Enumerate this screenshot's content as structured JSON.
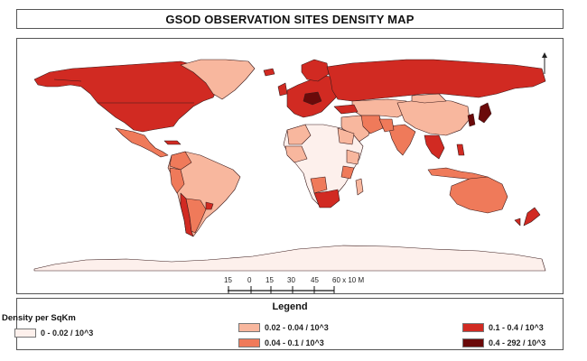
{
  "title": "GSOD OBSERVATION SITES DENSITY MAP",
  "scale_bar": {
    "labels": [
      "15",
      "0",
      "15",
      "30",
      "45",
      "60 x 10 M"
    ]
  },
  "legend": {
    "title": "Legend",
    "subtitle": "Density per SqKm",
    "items": [
      {
        "label": "0 - 0.02 / 10^3",
        "color": "#fdf0ec"
      },
      {
        "label": "0.02 - 0.04 / 10^3",
        "color": "#f8b79e"
      },
      {
        "label": "0.04 - 0.1 / 10^3",
        "color": "#ef7a5a"
      },
      {
        "label": "0.1 - 0.4 / 10^3",
        "color": "#d12a22"
      },
      {
        "label": "0.4 - 292 / 10^3",
        "color": "#6b0a0a"
      }
    ]
  },
  "colors": {
    "class1": "#fdf0ec",
    "class2": "#f8b79e",
    "class3": "#ef7a5a",
    "class4": "#d12a22",
    "class5": "#6b0a0a",
    "border": "#3a1a1a"
  }
}
